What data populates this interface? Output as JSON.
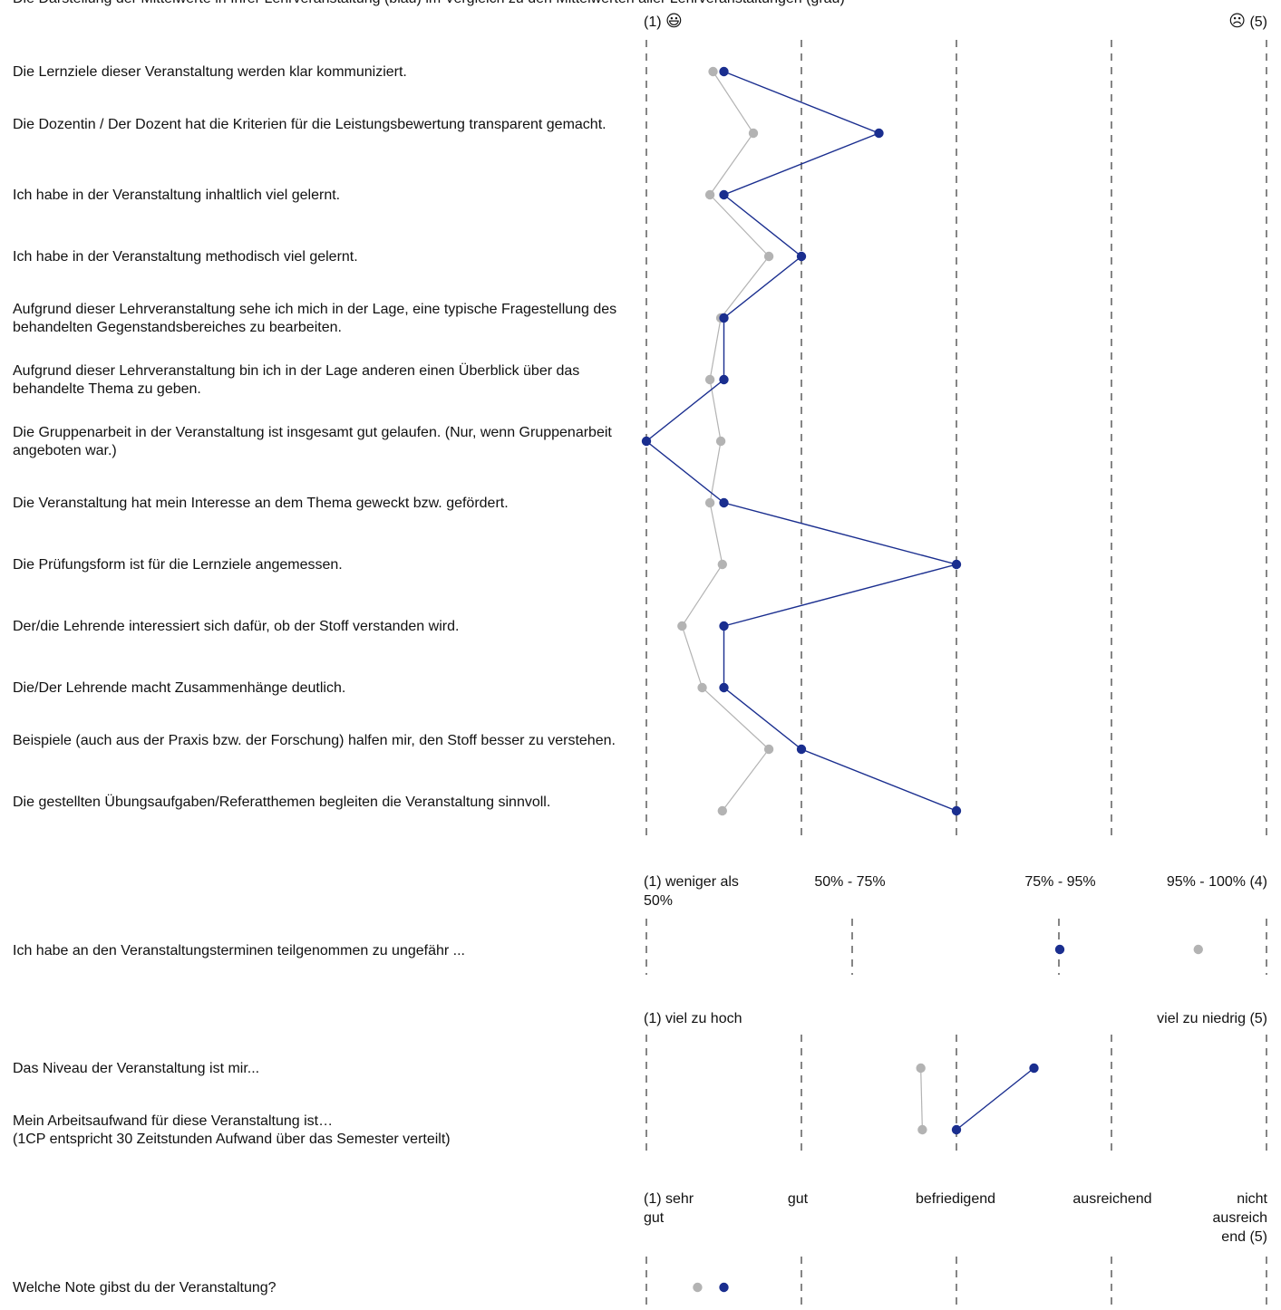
{
  "header": {
    "text": "Die Darstellung der Mittelwerte in Ihrer Lehrveranstaltung (blau) im Vergleich zu den Mittelwerten aller Lehrveranstaltungen (grau)",
    "scale_left": "(1)",
    "scale_left_icon": "smile-icon",
    "scale_left_glyph": "😃",
    "scale_right": "(5)",
    "scale_right_icon": "frown-icon",
    "scale_right_glyph": "☹"
  },
  "colors": {
    "course": "#1a2e8f",
    "all": "#b3b3b3",
    "grid": "#444444"
  },
  "chart_data": [
    {
      "type": "line",
      "scale": [
        1,
        5
      ],
      "categories": [
        "Die Lernziele dieser Veranstaltung werden klar kommuniziert.",
        "Die Dozentin / Der Dozent hat die Kriterien für die Leistungsbewertung transparent gemacht.",
        "Ich habe in der Veranstaltung inhaltlich viel gelernt.",
        "Ich habe in der Veranstaltung methodisch viel gelernt.",
        "Aufgrund dieser Lehrveranstaltung sehe ich mich in der Lage, eine typische Fragestellung des behandelten Gegenstandsbereiches zu bearbeiten.",
        "Aufgrund dieser Lehrveranstaltung bin ich in der Lage anderen einen Überblick über das behandelte Thema zu geben.",
        "Die Gruppenarbeit in der Veranstaltung ist insgesamt gut gelaufen. (Nur, wenn Gruppenarbeit angeboten war.)",
        "Die Veranstaltung hat mein Interesse an dem Thema geweckt bzw. gefördert.",
        "Die Prüfungsform ist für die Lernziele angemessen.",
        "Der/die Lehrende interessiert sich dafür, ob der Stoff verstanden wird.",
        "Die/Der Lehrende macht Zusammenhänge deutlich.",
        "Beispiele (auch aus der Praxis bzw. der Forschung) halfen mir, den Stoff besser zu verstehen.",
        "Die gestellten Übungsaufgaben/Referatthemen begleiten die Veranstaltung sinnvoll."
      ],
      "series": [
        {
          "color": "#1a2e8f",
          "values": [
            1.5,
            2.5,
            1.5,
            2.0,
            1.5,
            1.5,
            1.0,
            1.5,
            3.0,
            1.5,
            1.5,
            2.0,
            3.0
          ]
        },
        {
          "color": "#b3b3b3",
          "values": [
            1.43,
            1.69,
            1.41,
            1.79,
            1.48,
            1.41,
            1.48,
            1.41,
            1.49,
            1.23,
            1.36,
            1.79,
            1.49
          ]
        }
      ]
    },
    {
      "type": "line",
      "scale": [
        1,
        4
      ],
      "scale_labels": [
        "(1) weniger als 50%",
        "50% - 75%",
        "75% - 95%",
        "95% - 100% (4)"
      ],
      "categories": [
        "Ich habe an den Veranstaltungsterminen teilgenommen zu ungefähr ..."
      ],
      "series": [
        {
          "color": "#1a2e8f",
          "values": [
            3.0
          ]
        },
        {
          "color": "#b3b3b3",
          "values": [
            3.67
          ]
        }
      ]
    },
    {
      "type": "line",
      "scale": [
        1,
        5
      ],
      "scale_labels": [
        "(1) viel zu hoch",
        "viel zu niedrig (5)"
      ],
      "categories": [
        "Das Niveau der Veranstaltung ist mir...",
        "Mein Arbeitsaufwand für diese Veranstaltung ist…\n(1CP entspricht 30 Zeitstunden Aufwand  über das Semester verteilt)"
      ],
      "series": [
        {
          "color": "#1a2e8f",
          "values": [
            3.5,
            3.0
          ]
        },
        {
          "color": "#b3b3b3",
          "values": [
            2.77,
            2.78
          ]
        }
      ]
    },
    {
      "type": "line",
      "scale": [
        1,
        5
      ],
      "scale_labels": [
        "(1) sehr gut",
        "gut",
        "befriedigend",
        "ausreichend",
        "nicht ausreich end (5)"
      ],
      "categories": [
        "Welche Note gibst du der Veranstaltung?"
      ],
      "series": [
        {
          "color": "#1a2e8f",
          "values": [
            1.5
          ]
        },
        {
          "color": "#b3b3b3",
          "values": [
            1.33
          ]
        }
      ]
    }
  ]
}
